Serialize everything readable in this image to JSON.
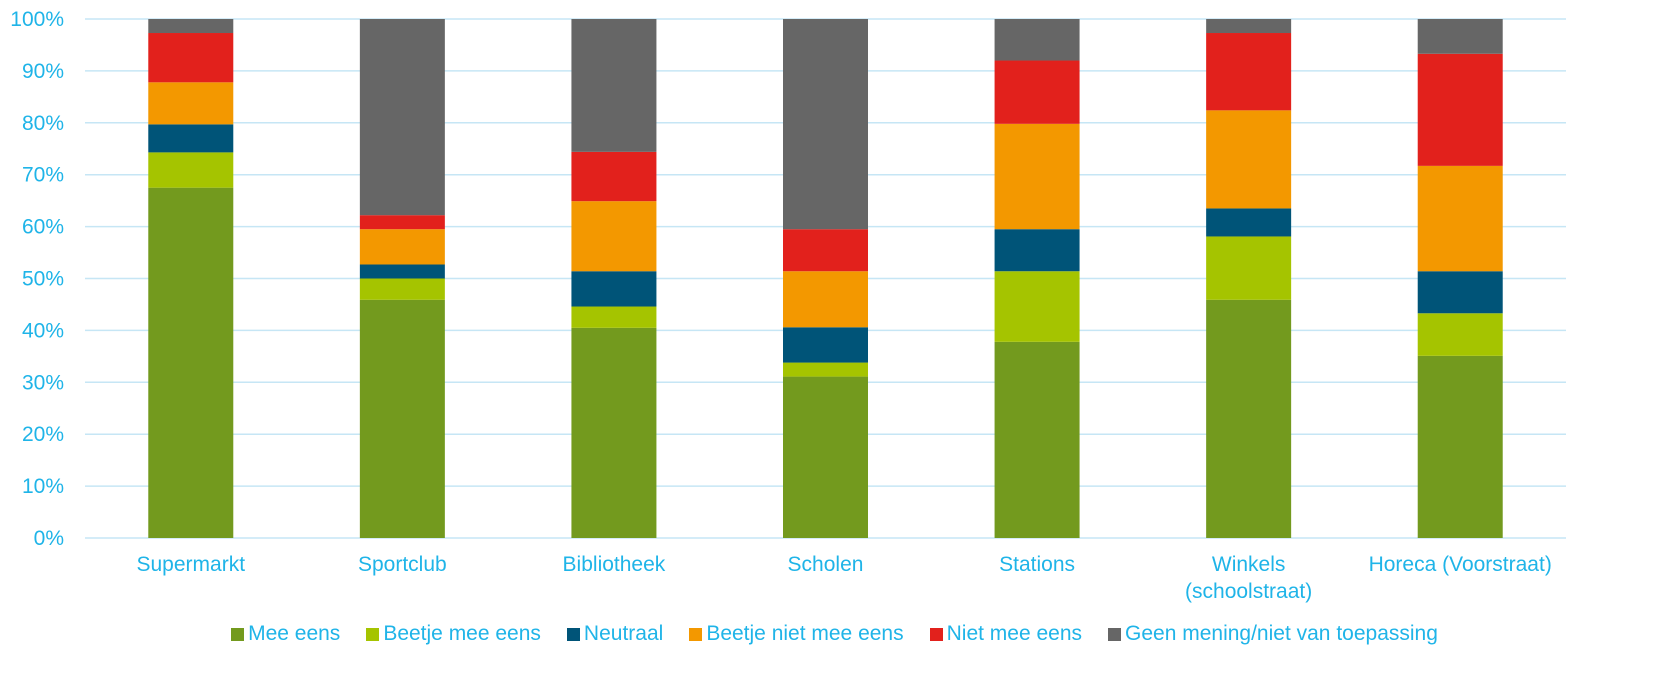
{
  "chart_data": {
    "type": "bar",
    "stacked": true,
    "percent_axis": true,
    "ylim": [
      0,
      100
    ],
    "yticks": [
      "0%",
      "10%",
      "20%",
      "30%",
      "40%",
      "50%",
      "60%",
      "70%",
      "80%",
      "90%",
      "100%"
    ],
    "grid": true,
    "legend_position": "bottom",
    "text_color": "#1fb4e8",
    "grid_color": "#c6e6f5",
    "categories": [
      [
        "Supermarkt"
      ],
      [
        "Sportclub"
      ],
      [
        "Bibliotheek"
      ],
      [
        "Scholen"
      ],
      [
        "Stations"
      ],
      [
        "Winkels",
        "(schoolstraat)"
      ],
      [
        "Horeca (Voorstraat)"
      ]
    ],
    "series": [
      {
        "name": "Mee eens",
        "color": "#739a1e",
        "values": [
          67.5,
          45.9,
          40.5,
          31.1,
          37.8,
          45.9,
          35.1
        ]
      },
      {
        "name": "Beetje mee eens",
        "color": "#a5c400",
        "values": [
          6.8,
          4.1,
          4.1,
          2.7,
          13.6,
          12.2,
          8.2
        ]
      },
      {
        "name": "Neutraal",
        "color": "#005478",
        "values": [
          5.4,
          2.7,
          6.8,
          6.8,
          8.1,
          5.4,
          8.1
        ]
      },
      {
        "name": "Beetje niet mee eens",
        "color": "#f39800",
        "values": [
          8.1,
          6.8,
          13.5,
          10.8,
          20.3,
          18.9,
          20.3
        ]
      },
      {
        "name": "Niet mee eens",
        "color": "#e2211c",
        "values": [
          9.5,
          2.7,
          9.5,
          8.1,
          12.2,
          14.9,
          21.6
        ]
      },
      {
        "name": "Geen mening/niet van toepassing",
        "color": "#666666",
        "values": [
          2.7,
          37.8,
          25.6,
          40.5,
          8.0,
          2.7,
          6.7
        ]
      }
    ]
  }
}
